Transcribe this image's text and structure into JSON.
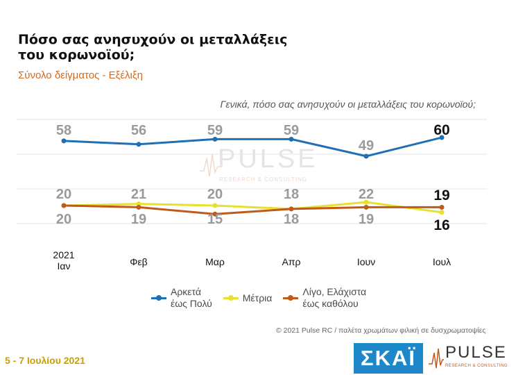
{
  "header": {
    "title": "Πόσο σας ανησυχούν οι μεταλλάξεις του κορωνοϊού;",
    "subtitle": "Σύνολο δείγματος - Εξέλιξη"
  },
  "chart_data": {
    "type": "line",
    "title": "Γενικά, πόσο σας ανησυχούν οι μεταλλάξεις του κορωνοϊού;",
    "categories": [
      "2021 Ιαν",
      "Φεβ",
      "Μαρ",
      "Απρ",
      "Ιουν",
      "Ιουλ"
    ],
    "xlabel": "",
    "ylabel": "",
    "ylim": [
      0,
      70
    ],
    "series": [
      {
        "name": "Αρκετά έως Πολύ",
        "color": "#1f6fb2",
        "values": [
          58,
          56,
          59,
          59,
          49,
          60
        ]
      },
      {
        "name": "Μέτρια",
        "color": "#e8e030",
        "values": [
          20,
          21,
          20,
          18,
          22,
          16
        ]
      },
      {
        "name": "Λίγο, Ελάχιστα έως καθόλου",
        "color": "#c05a1a",
        "values": [
          20,
          19,
          15,
          18,
          19,
          19
        ]
      }
    ],
    "legend_position": "bottom"
  },
  "legend": [
    {
      "line1": "Αρκετά",
      "line2": "έως Πολύ",
      "color": "#1f6fb2"
    },
    {
      "line1": "Μέτρια",
      "line2": "",
      "color": "#e8e030"
    },
    {
      "line1": "Λίγο, Ελάχιστα",
      "line2": "έως καθόλου",
      "color": "#c05a1a"
    }
  ],
  "footer": {
    "credit": "© 2021 Pulse RC   /   παλέτα χρωμάτων φιλική σε δυσχρωματοψίες",
    "date": "5 - 7  Ιουλίου  2021"
  },
  "logos": {
    "skai": "ΣΚΑΪ",
    "pulse_word": "PULSE",
    "pulse_sub": "RESEARCH & CONSULTING"
  },
  "watermark": {
    "word": "PULSE",
    "sub": "RESEARCH & CONSULTING"
  }
}
